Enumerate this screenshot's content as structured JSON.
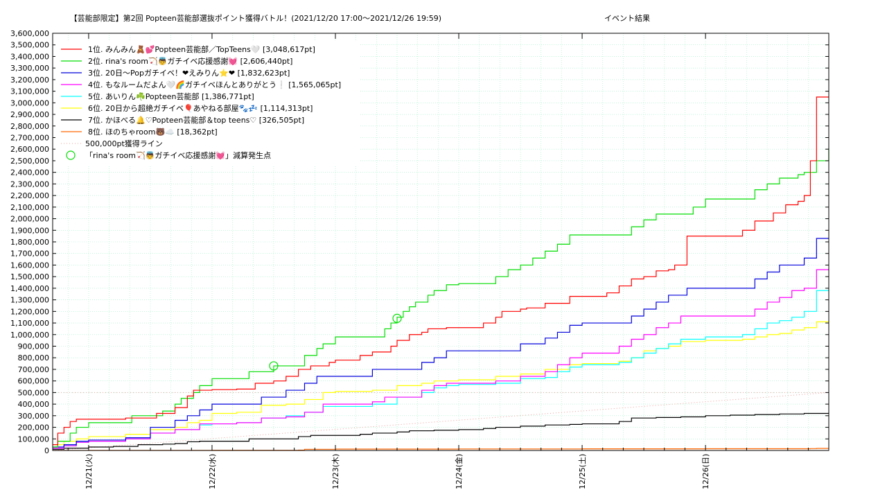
{
  "chart_data": {
    "type": "line",
    "title": "【芸能部限定】第2回 Popteen芸能部選抜ポイント獲得バトル！(2021/12/20 17:00〜2021/12/26 19:59)",
    "subtitle": "イベント結果",
    "xlabel": "",
    "ylabel": "",
    "x_tick_labels": [
      "12/21(火)",
      "12/22(水)",
      "12/23(木)",
      "12/24(金)",
      "12/25(土)",
      "12/26(日)"
    ],
    "x_tick_days": [
      1,
      2,
      3,
      4,
      5,
      6
    ],
    "xlim_days": [
      0.7083,
      6.9993
    ],
    "ylim": [
      0,
      3600000
    ],
    "y_tick_step": 100000,
    "grid": true,
    "legend_position": "top-left",
    "reference_line": {
      "name": "500,000pt獲得ライン",
      "color": "#f0a0a0",
      "x": [
        0.7083,
        6.9993
      ],
      "y": [
        0,
        500000
      ]
    },
    "markers": {
      "name": "「rina's room🏹👼ガチイベ応援感謝💓」減算発生点",
      "color": "#00dd00",
      "points": [
        {
          "x": 2.5,
          "y": 730000
        },
        {
          "x": 3.5,
          "y": 1140000
        }
      ]
    },
    "series": [
      {
        "name": "1位. みんみん🧸💕Popteen芸能部／TopTeens🤍 [3,048,617pt]",
        "color": "#ff0000",
        "x": [
          0.71,
          0.75,
          0.8,
          0.85,
          0.9,
          1.0,
          1.3,
          1.55,
          1.7,
          1.8,
          1.85,
          2.0,
          2.2,
          2.35,
          2.5,
          2.6,
          2.7,
          2.8,
          2.95,
          3.0,
          3.2,
          3.3,
          3.45,
          3.5,
          3.6,
          3.7,
          3.75,
          3.9,
          4.0,
          4.2,
          4.3,
          4.35,
          4.5,
          4.55,
          4.7,
          4.9,
          5.2,
          5.3,
          5.4,
          5.5,
          5.6,
          5.7,
          5.75,
          5.85,
          6.1,
          6.3,
          6.4,
          6.55,
          6.65,
          6.75,
          6.8,
          6.85,
          6.9,
          6.999
        ],
        "y": [
          50000,
          150000,
          200000,
          250000,
          270000,
          270000,
          280000,
          320000,
          370000,
          470000,
          520000,
          525000,
          530000,
          580000,
          600000,
          640000,
          700000,
          730000,
          760000,
          780000,
          820000,
          850000,
          900000,
          950000,
          1000000,
          1020000,
          1050000,
          1060000,
          1060000,
          1100000,
          1150000,
          1200000,
          1220000,
          1230000,
          1270000,
          1330000,
          1360000,
          1420000,
          1480000,
          1500000,
          1550000,
          1560000,
          1600000,
          1850000,
          1850000,
          1900000,
          1980000,
          2050000,
          2120000,
          2150000,
          2200000,
          2500000,
          3050000,
          3050000
        ],
        "label": "3,048,617pt"
      },
      {
        "name": "2位. rina's room🏹👼ガチイベ応援感謝💓 [2,606,440pt]",
        "color": "#00dd00",
        "x": [
          0.71,
          0.75,
          0.85,
          0.9,
          1.0,
          1.3,
          1.35,
          1.6,
          1.7,
          1.75,
          1.85,
          1.9,
          2.0,
          2.25,
          2.3,
          2.5,
          2.7,
          2.75,
          2.85,
          2.9,
          3.0,
          3.3,
          3.4,
          3.45,
          3.5,
          3.55,
          3.6,
          3.65,
          3.75,
          3.8,
          3.9,
          4.0,
          4.25,
          4.3,
          4.4,
          4.5,
          4.6,
          4.7,
          4.8,
          4.9,
          5.3,
          5.4,
          5.5,
          5.6,
          5.8,
          5.9,
          6.0,
          6.3,
          6.4,
          6.5,
          6.6,
          6.75,
          6.8,
          6.9,
          6.999
        ],
        "y": [
          30000,
          80000,
          150000,
          200000,
          240000,
          240000,
          300000,
          340000,
          400000,
          450000,
          500000,
          560000,
          620000,
          620000,
          680000,
          730000,
          730000,
          820000,
          880000,
          920000,
          980000,
          980000,
          1050000,
          1100000,
          1150000,
          1200000,
          1240000,
          1280000,
          1340000,
          1380000,
          1430000,
          1440000,
          1440000,
          1500000,
          1560000,
          1600000,
          1660000,
          1720000,
          1780000,
          1860000,
          1860000,
          1930000,
          1990000,
          2040000,
          2040000,
          2100000,
          2170000,
          2170000,
          2250000,
          2300000,
          2350000,
          2380000,
          2400000,
          2500000,
          2606440
        ],
        "label": "2,606,440pt"
      },
      {
        "name": "3位. 20日〜Popガチイベ！❤えみりん⭐❤ [1,832,623pt]",
        "color": "#0000dd",
        "x": [
          0.71,
          0.8,
          0.9,
          1.0,
          1.3,
          1.5,
          1.7,
          1.8,
          1.9,
          2.0,
          2.2,
          2.4,
          2.6,
          2.75,
          2.85,
          3.0,
          3.3,
          3.5,
          3.7,
          3.8,
          3.9,
          4.0,
          4.3,
          4.5,
          4.7,
          4.8,
          4.9,
          5.0,
          5.3,
          5.4,
          5.5,
          5.6,
          5.7,
          5.85,
          6.0,
          6.3,
          6.4,
          6.5,
          6.6,
          6.7,
          6.8,
          6.9,
          6.999
        ],
        "y": [
          30000,
          50000,
          80000,
          90000,
          110000,
          200000,
          260000,
          300000,
          350000,
          400000,
          400000,
          460000,
          520000,
          580000,
          640000,
          640000,
          700000,
          700000,
          760000,
          800000,
          860000,
          860000,
          860000,
          920000,
          970000,
          1020000,
          1080000,
          1100000,
          1100000,
          1160000,
          1220000,
          1280000,
          1340000,
          1400000,
          1400000,
          1400000,
          1480000,
          1540000,
          1600000,
          1600000,
          1660000,
          1830000,
          1832623
        ],
        "label": "1,832,623pt"
      },
      {
        "name": "4位. もなルームだよん🤍🌈ガチイベほんとありがとう❕ [1,565,065pt]",
        "color": "#ff00ff",
        "x": [
          0.71,
          0.8,
          0.9,
          1.0,
          1.3,
          1.5,
          1.7,
          1.9,
          2.0,
          2.2,
          2.4,
          2.6,
          2.75,
          2.9,
          3.0,
          3.3,
          3.4,
          3.5,
          3.7,
          3.8,
          3.9,
          4.0,
          4.3,
          4.5,
          4.7,
          4.8,
          4.9,
          5.0,
          5.2,
          5.3,
          5.4,
          5.5,
          5.6,
          5.7,
          5.8,
          6.0,
          6.3,
          6.4,
          6.5,
          6.6,
          6.7,
          6.8,
          6.9,
          6.999
        ],
        "y": [
          20000,
          40000,
          70000,
          80000,
          100000,
          150000,
          180000,
          230000,
          230000,
          240000,
          280000,
          290000,
          330000,
          400000,
          400000,
          420000,
          460000,
          460000,
          520000,
          560000,
          580000,
          580000,
          600000,
          640000,
          680000,
          740000,
          800000,
          840000,
          840000,
          900000,
          960000,
          1000000,
          1060000,
          1100000,
          1160000,
          1160000,
          1160000,
          1220000,
          1280000,
          1320000,
          1380000,
          1400000,
          1560000,
          1565065
        ],
        "label": "1,565,065pt"
      },
      {
        "name": "5位. あいりん☘️Popteen芸能部 [1,386,771pt]",
        "color": "#00ffff",
        "x": [
          0.71,
          0.8,
          0.9,
          1.0,
          1.3,
          1.5,
          1.7,
          1.9,
          2.0,
          2.2,
          2.4,
          2.6,
          2.75,
          2.9,
          3.0,
          3.3,
          3.5,
          3.7,
          3.8,
          3.9,
          4.0,
          4.3,
          4.5,
          4.7,
          4.8,
          4.9,
          5.0,
          5.3,
          5.4,
          5.5,
          5.6,
          5.7,
          5.8,
          6.0,
          6.3,
          6.4,
          6.5,
          6.6,
          6.7,
          6.8,
          6.9,
          6.999
        ],
        "y": [
          20000,
          40000,
          70000,
          80000,
          100000,
          150000,
          180000,
          220000,
          230000,
          240000,
          280000,
          300000,
          330000,
          380000,
          380000,
          400000,
          460000,
          500000,
          540000,
          560000,
          570000,
          580000,
          620000,
          630000,
          680000,
          720000,
          740000,
          760000,
          800000,
          840000,
          880000,
          920000,
          960000,
          980000,
          1000000,
          1050000,
          1100000,
          1120000,
          1150000,
          1200000,
          1380000,
          1386771
        ],
        "label": "1,386,771pt"
      },
      {
        "name": "6位. 20日から超絶ガチイベ🎈あやねる部屋🐾💤 [1,114,313pt]",
        "color": "#ffff00",
        "x": [
          0.71,
          0.8,
          0.9,
          1.0,
          1.3,
          1.5,
          1.7,
          1.8,
          1.9,
          2.0,
          2.2,
          2.4,
          2.6,
          2.75,
          2.9,
          3.0,
          3.3,
          3.5,
          3.7,
          3.8,
          4.0,
          4.3,
          4.5,
          4.7,
          4.9,
          5.0,
          5.3,
          5.4,
          5.5,
          5.6,
          5.7,
          5.8,
          6.0,
          6.3,
          6.4,
          6.5,
          6.6,
          6.7,
          6.8,
          6.9,
          6.999
        ],
        "y": [
          50000,
          80000,
          100000,
          120000,
          140000,
          180000,
          200000,
          240000,
          260000,
          320000,
          330000,
          390000,
          400000,
          440000,
          500000,
          510000,
          520000,
          560000,
          580000,
          600000,
          610000,
          640000,
          660000,
          700000,
          740000,
          750000,
          770000,
          800000,
          860000,
          880000,
          900000,
          940000,
          950000,
          960000,
          980000,
          1000000,
          1010000,
          1040000,
          1060000,
          1110000,
          1114313
        ],
        "label": "1,114,313pt"
      },
      {
        "name": "7位. かほべる🔔♡Popteen芸能部＆top teens♡ [326,505pt]",
        "color": "#000000",
        "x": [
          0.71,
          0.8,
          1.0,
          1.2,
          1.4,
          1.6,
          1.7,
          1.8,
          1.9,
          2.0,
          2.2,
          2.3,
          2.5,
          2.7,
          2.8,
          3.0,
          3.2,
          3.3,
          3.5,
          3.6,
          3.8,
          4.0,
          4.2,
          4.3,
          4.5,
          4.7,
          4.9,
          5.0,
          5.2,
          5.3,
          5.4,
          5.6,
          5.8,
          6.0,
          6.2,
          6.4,
          6.6,
          6.8,
          6.999
        ],
        "y": [
          10000,
          20000,
          30000,
          35000,
          50000,
          55000,
          60000,
          75000,
          80000,
          80000,
          80000,
          100000,
          100000,
          120000,
          130000,
          130000,
          140000,
          150000,
          160000,
          170000,
          175000,
          180000,
          190000,
          200000,
          210000,
          220000,
          225000,
          230000,
          230000,
          250000,
          280000,
          285000,
          290000,
          300000,
          305000,
          310000,
          315000,
          320000,
          326505
        ],
        "label": "326,505pt"
      },
      {
        "name": "8位. ほのちゃroom🐻☁️ [18,362pt]",
        "color": "#ff6600",
        "x": [
          0.71,
          1.0,
          2.0,
          2.7,
          2.75,
          3.0,
          4.0,
          5.0,
          6.0,
          6.85,
          6.9,
          6.999
        ],
        "y": [
          500,
          1000,
          2000,
          3000,
          10000,
          12000,
          13000,
          14000,
          15000,
          16000,
          18000,
          18362
        ],
        "label": "18,362pt"
      }
    ]
  }
}
